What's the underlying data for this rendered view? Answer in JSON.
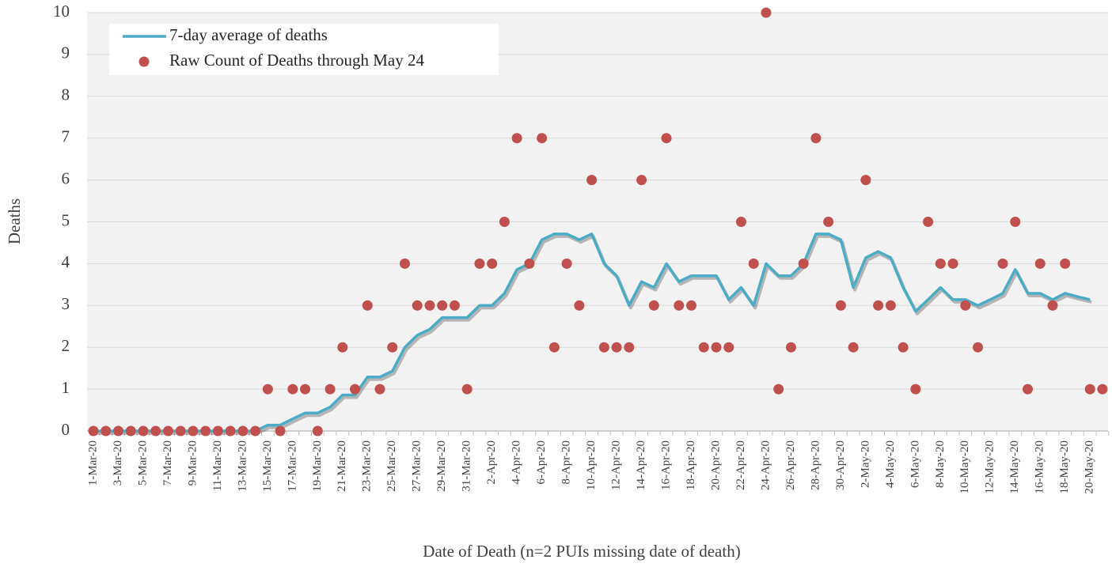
{
  "chart_data": {
    "type": "line_scatter",
    "x_label": "Date of Death (n=2 PUIs missing date of death)",
    "y_label": "Deaths",
    "categories": [
      "1-Mar-20",
      null,
      "3-Mar-20",
      null,
      "5-Mar-20",
      null,
      "7-Mar-20",
      null,
      "9-Mar-20",
      null,
      "11-Mar-20",
      null,
      "13-Mar-20",
      null,
      "15-Mar-20",
      null,
      "17-Mar-20",
      null,
      "19-Mar-20",
      null,
      "21-Mar-20",
      null,
      "23-Mar-20",
      null,
      "25-Mar-20",
      null,
      "27-Mar-20",
      null,
      "29-Mar-20",
      null,
      "31-Mar-20",
      null,
      "2-Apr-20",
      null,
      "4-Apr-20",
      null,
      "6-Apr-20",
      null,
      "8-Apr-20",
      null,
      "10-Apr-20",
      null,
      "12-Apr-20",
      null,
      "14-Apr-20",
      null,
      "16-Apr-20",
      null,
      "18-Apr-20",
      null,
      "20-Apr-20",
      null,
      "22-Apr-20",
      null,
      "24-Apr-20",
      null,
      "26-Apr-20",
      null,
      "28-Apr-20",
      null,
      "30-Apr-20",
      null,
      "2-May-20",
      null,
      "4-May-20",
      null,
      "6-May-20",
      null,
      "8-May-20",
      null,
      "10-May-20",
      null,
      "12-May-20",
      null,
      "14-May-20",
      null,
      "16-May-20",
      null,
      "18-May-20",
      null,
      "20-May-20",
      null
    ],
    "series": [
      {
        "name": "7-day average of deaths",
        "kind": "line",
        "color": "#4bacc6",
        "values": [
          0,
          0,
          0,
          0,
          0,
          0,
          0,
          0,
          0,
          0,
          0,
          0,
          0,
          0,
          0.14,
          0.14,
          0.29,
          0.43,
          0.43,
          0.57,
          0.86,
          0.86,
          1.29,
          1.29,
          1.43,
          2.0,
          2.29,
          2.43,
          2.71,
          2.71,
          2.71,
          3.0,
          3.0,
          3.29,
          3.86,
          4.0,
          4.57,
          4.71,
          4.71,
          4.57,
          4.71,
          4.0,
          3.71,
          3.0,
          3.57,
          3.43,
          4.0,
          3.57,
          3.71,
          3.71,
          3.71,
          3.14,
          3.43,
          3.0,
          4.0,
          3.71,
          3.71,
          4.0,
          4.71,
          4.71,
          4.57,
          3.43,
          4.14,
          4.29,
          4.14,
          3.43,
          2.86,
          3.14,
          3.43,
          3.14,
          3.14,
          3.0,
          3.14,
          3.29,
          3.86,
          3.29,
          3.29,
          3.14,
          3.29,
          3.21,
          3.14,
          null
        ]
      },
      {
        "name": "Raw Count of Deaths through May 24",
        "kind": "scatter",
        "color": "#c0504d",
        "values": [
          0,
          0,
          0,
          0,
          0,
          0,
          0,
          0,
          0,
          0,
          0,
          0,
          0,
          0,
          1,
          0,
          1,
          1,
          0,
          1,
          2,
          1,
          3,
          1,
          2,
          4,
          3,
          3,
          3,
          3,
          1,
          4,
          4,
          5,
          7,
          4,
          7,
          2,
          4,
          3,
          6,
          2,
          2,
          2,
          6,
          3,
          7,
          3,
          3,
          2,
          2,
          2,
          5,
          4,
          10,
          1,
          2,
          4,
          7,
          5,
          3,
          2,
          6,
          3,
          3,
          2,
          1,
          5,
          4,
          4,
          3,
          2,
          null,
          4,
          5,
          1,
          4,
          3,
          4,
          null,
          1,
          1
        ]
      }
    ],
    "ylim": [
      0,
      10
    ],
    "yticks": [
      0,
      1,
      2,
      3,
      4,
      5,
      6,
      7,
      8,
      9,
      10
    ],
    "grid": true,
    "legend": "upper left"
  }
}
